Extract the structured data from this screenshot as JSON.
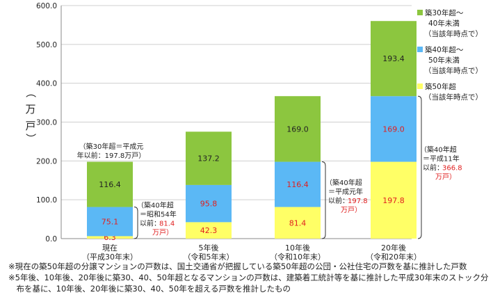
{
  "chart_data": {
    "type": "bar",
    "stacked": true,
    "categories": [
      {
        "line1": "現在",
        "line2": "（平成30年末）"
      },
      {
        "line1": "5年後",
        "line2": "（令和5年末）"
      },
      {
        "line1": "10年後",
        "line2": "（令和10年末）"
      },
      {
        "line1": "20年後",
        "line2": "（令和20年末）"
      }
    ],
    "series": [
      {
        "name_lines": [
          "築50年超",
          "（当該年時点で）"
        ],
        "color": "#ffff66",
        "values": [
          6.3,
          42.3,
          81.4,
          197.8
        ],
        "label_color": "#e02020"
      },
      {
        "name_lines": [
          "築40年超～",
          "50年未満",
          "（当該年時点で）"
        ],
        "color": "#5bb8f5",
        "values": [
          75.1,
          95.8,
          116.4,
          169.0
        ],
        "label_color": "#e02020"
      },
      {
        "name_lines": [
          "築30年超～",
          "40年未満",
          "（当該年時点で）"
        ],
        "color": "#8cc63f",
        "values": [
          116.4,
          137.2,
          169.0,
          193.4
        ],
        "label_color": "#222222"
      }
    ],
    "value_labels": [
      [
        "6.3",
        "42.3",
        "81.4",
        "197.8"
      ],
      [
        "75.1",
        "95.8",
        "116.4",
        "169.0"
      ],
      [
        "116.4",
        "137.2",
        "169.0",
        "193.4"
      ]
    ],
    "ylim": [
      0,
      600
    ],
    "yticks": [
      "0.0",
      "100.0",
      "200.0",
      "300.0",
      "400.0",
      "500.0",
      "600.0"
    ],
    "ylabel_chars": [
      "（",
      "万",
      "戸",
      "）"
    ],
    "grid": true,
    "legend_position": "right",
    "annotations": {
      "top_note": {
        "lines": [
          "（築30年超＝平成元",
          "年以前：197.8万戸）"
        ]
      },
      "side_notes": [
        {
          "lines": [
            "（築40年超",
            "＝昭和54年",
            "以前："
          ],
          "red": [
            "81.4",
            "万戸）"
          ]
        },
        {
          "lines": [
            "（築40年超",
            "＝平成元年",
            "以前："
          ],
          "red": [
            "197.8",
            "万戸）"
          ]
        },
        {
          "lines": [
            "（築40年超",
            "＝平成11年",
            "以前："
          ],
          "red": [
            "366.8",
            "万戸）"
          ]
        }
      ]
    }
  },
  "footnotes": [
    "※現在の築50年超の分譲マンションの戸数は、国土交通省が把握している築50年超の公団・公社住宅の戸数を基に推計した戸数",
    "※5年後、10年後、20年後に築30、40、50年超となるマンションの戸数は、建築着工統計等を基に推計した平成30年末のストック分",
    "　布を基に、10年後、20年後に築30、40、50年を超える戸数を推計したもの"
  ]
}
